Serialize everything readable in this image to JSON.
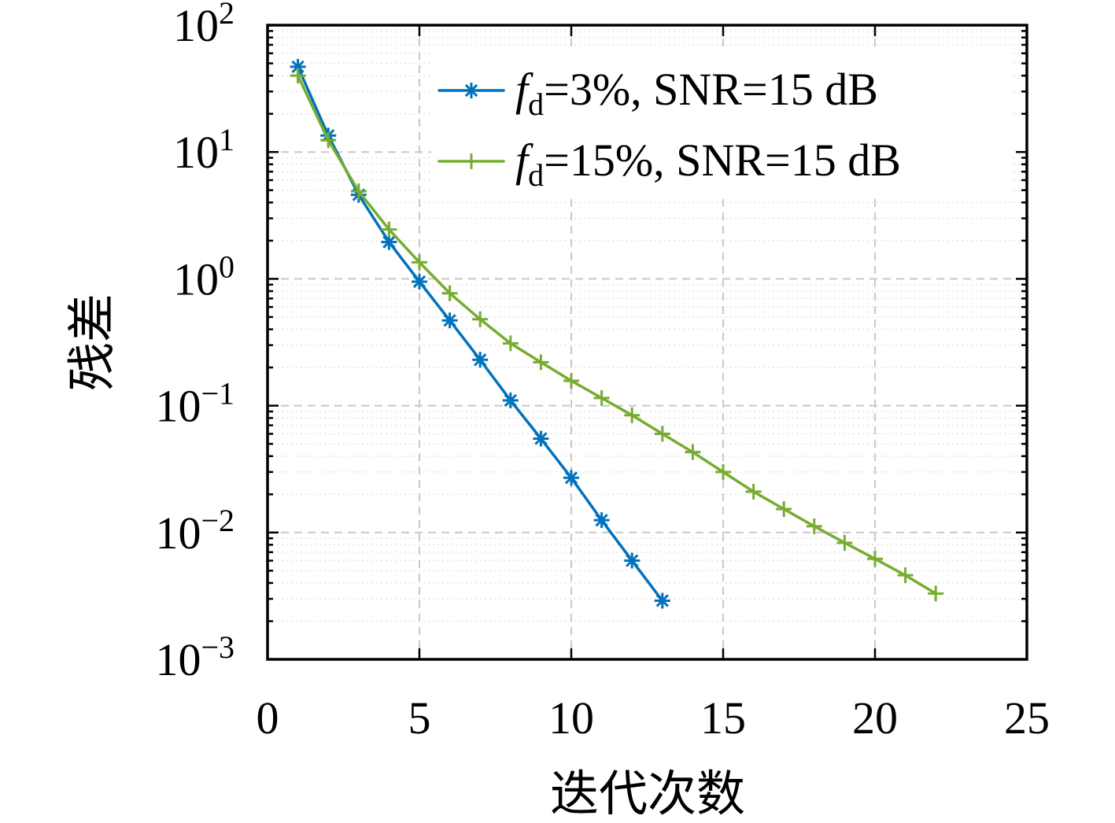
{
  "chart_data": {
    "type": "line",
    "xlabel": "迭代次数",
    "ylabel": "残差",
    "xlim": [
      0,
      25
    ],
    "ylim": [
      0.001,
      100
    ],
    "xscale": "linear",
    "yscale": "log",
    "xticks": [
      0,
      5,
      10,
      15,
      20,
      25
    ],
    "xtick_labels": [
      "0",
      "5",
      "10",
      "15",
      "20",
      "25"
    ],
    "yticks": [
      0.001,
      0.01,
      0.1,
      1,
      10,
      100
    ],
    "ytick_labels": [
      {
        "base": "10",
        "exp": "−3"
      },
      {
        "base": "10",
        "exp": "−2"
      },
      {
        "base": "10",
        "exp": "−1"
      },
      {
        "base": "10",
        "exp": "0"
      },
      {
        "base": "10",
        "exp": "1"
      },
      {
        "base": "10",
        "exp": "2"
      }
    ],
    "grid": true,
    "minor_grid": true,
    "legend_position": "top-right",
    "series": [
      {
        "legend_label": {
          "symbol": "f",
          "subscript": "d",
          "rest": "=3%, SNR=15 dB"
        },
        "color": "#0072BD",
        "marker": "asterisk",
        "x": [
          1,
          2,
          3,
          4,
          5,
          6,
          7,
          8,
          9,
          10,
          11,
          12,
          13
        ],
        "y": [
          47,
          13.5,
          4.6,
          1.95,
          0.95,
          0.47,
          0.23,
          0.11,
          0.055,
          0.027,
          0.0125,
          0.006,
          0.0029
        ]
      },
      {
        "legend_label": {
          "symbol": "f",
          "subscript": "d",
          "rest": "=15%, SNR=15 dB"
        },
        "color": "#77AC30",
        "marker": "plus",
        "x": [
          1,
          2,
          3,
          4,
          5,
          6,
          7,
          8,
          9,
          10,
          11,
          12,
          13,
          14,
          15,
          16,
          17,
          18,
          19,
          20,
          21,
          22
        ],
        "y": [
          40,
          12.4,
          4.9,
          2.45,
          1.35,
          0.77,
          0.48,
          0.31,
          0.22,
          0.157,
          0.115,
          0.084,
          0.06,
          0.043,
          0.03,
          0.021,
          0.0153,
          0.0112,
          0.0083,
          0.0062,
          0.0046,
          0.0033
        ]
      }
    ]
  }
}
